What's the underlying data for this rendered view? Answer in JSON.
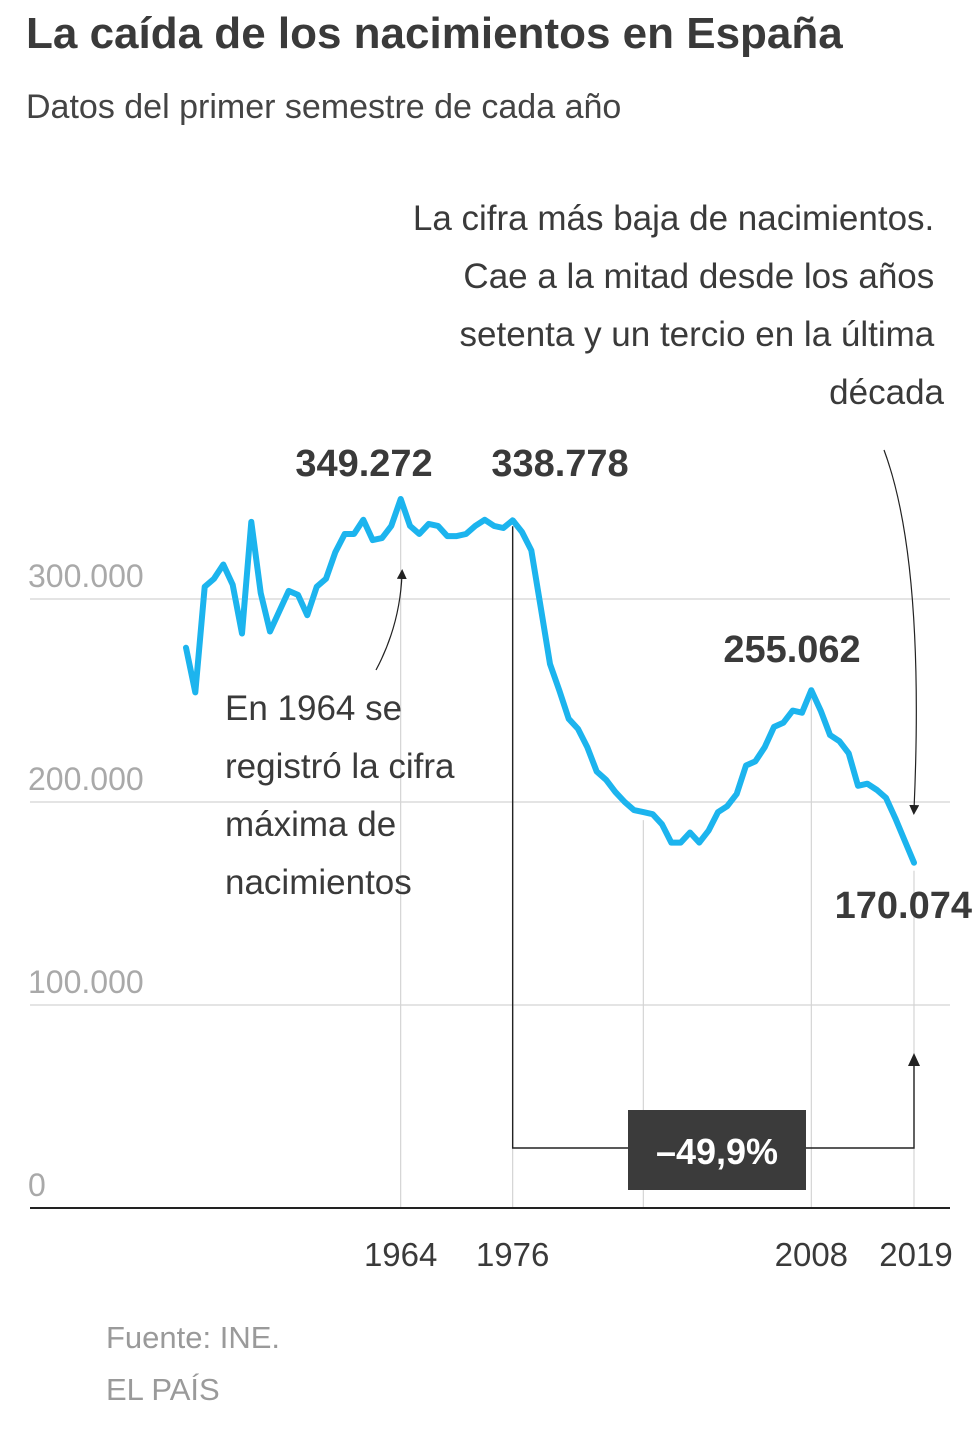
{
  "chart_data": {
    "type": "line",
    "title": "La caída de los nacimientos en España",
    "subtitle": "Datos del primer semestre de cada año",
    "x": [
      1941,
      1942,
      1943,
      1944,
      1945,
      1946,
      1947,
      1948,
      1949,
      1950,
      1951,
      1952,
      1953,
      1954,
      1955,
      1956,
      1957,
      1958,
      1959,
      1960,
      1961,
      1962,
      1963,
      1964,
      1965,
      1966,
      1967,
      1968,
      1969,
      1970,
      1971,
      1972,
      1973,
      1974,
      1975,
      1976,
      1977,
      1978,
      1979,
      1980,
      1981,
      1982,
      1983,
      1984,
      1985,
      1986,
      1987,
      1988,
      1989,
      1990,
      1991,
      1992,
      1993,
      1994,
      1995,
      1996,
      1997,
      1998,
      1999,
      2000,
      2001,
      2002,
      2003,
      2004,
      2005,
      2006,
      2007,
      2008,
      2009,
      2010,
      2011,
      2012,
      2013,
      2014,
      2015,
      2016,
      2017,
      2018,
      2019
    ],
    "series": [
      {
        "values": [
          276000,
          254000,
          306000,
          310000,
          317000,
          307000,
          283000,
          338000,
          303000,
          284000,
          294000,
          304000,
          302000,
          292000,
          306000,
          310000,
          323000,
          332000,
          332000,
          339000,
          329000,
          330000,
          336000,
          349272,
          336000,
          332000,
          337000,
          336000,
          331000,
          331000,
          332000,
          336000,
          339000,
          336000,
          335000,
          338778,
          333000,
          324000,
          296000,
          268000,
          255000,
          241000,
          236000,
          227000,
          215000,
          211000,
          205000,
          200000,
          196000,
          195000,
          194000,
          189000,
          180000,
          180000,
          185000,
          180000,
          186000,
          195000,
          198000,
          204000,
          218000,
          220000,
          227000,
          237000,
          239000,
          245000,
          244000,
          255062,
          245000,
          233000,
          230000,
          224000,
          208000,
          209000,
          206000,
          202000,
          192000,
          181000,
          170074
        ],
        "color": "#1cb4ee"
      }
    ],
    "ylim": [
      0,
      350000
    ],
    "yticks": [
      {
        "value": 0,
        "label": "0"
      },
      {
        "value": 100000,
        "label": "100.000"
      },
      {
        "value": 200000,
        "label": "200.000"
      },
      {
        "value": 300000,
        "label": "300.000"
      }
    ],
    "xticks": [
      {
        "value": 1964,
        "label": "1964"
      },
      {
        "value": 1976,
        "label": "1976"
      },
      {
        "value": 2008,
        "label": "2008"
      },
      {
        "value": 2019,
        "label": "2019"
      }
    ],
    "grid": true,
    "value_labels": [
      {
        "year": 1964,
        "text": "349.272"
      },
      {
        "year": 1976,
        "text": "338.778"
      },
      {
        "year": 2008,
        "text": "255.062"
      },
      {
        "year": 2019,
        "text": "170.074"
      }
    ],
    "annotations": {
      "peak_note": [
        "En 1964 se",
        "registró la cifra",
        "máxima de",
        "nacimientos"
      ],
      "low_note": [
        "La cifra más baja de nacimientos.",
        "Cae a la mitad desde los años",
        "setenta y un tercio en la última",
        "década"
      ],
      "change_label": "–49,9%"
    },
    "source": "Fuente: INE.",
    "brand": "EL PAÍS"
  }
}
